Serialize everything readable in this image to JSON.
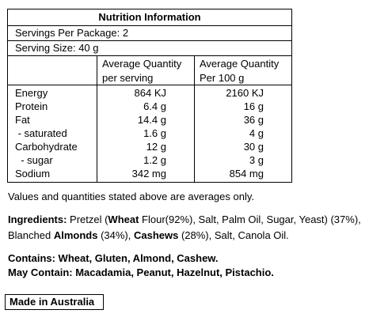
{
  "panel": {
    "title": "Nutrition Information",
    "servings": "Servings Per Package: 2",
    "serving_size": "Serving Size: 40 g",
    "col_serving": [
      "Average Quantity",
      "per serving"
    ],
    "col_100g": [
      "Average Quantity",
      "Per 100 g"
    ],
    "rows": [
      {
        "name": "Energy",
        "serving": "864 KJ",
        "per100": "2160 KJ"
      },
      {
        "name": "Protein",
        "serving": "6.4 g",
        "per100": "16 g"
      },
      {
        "name": "Fat",
        "serving": "14.4 g",
        "per100": "36 g"
      },
      {
        "name": " - saturated",
        "serving": "1.6 g",
        "per100": "4 g"
      },
      {
        "name": "Carbohydrate",
        "serving": "12 g",
        "per100": "30 g"
      },
      {
        "name": "  - sugar",
        "serving": "1.2 g",
        "per100": "3 g"
      },
      {
        "name": "Sodium",
        "serving": "342 mg",
        "per100": "854 mg"
      }
    ]
  },
  "note": "Values and quantities stated above are averages only.",
  "ingredients": [
    {
      "text": "Ingredients:",
      "bold": true
    },
    {
      "text": " Pretzel (",
      "bold": false
    },
    {
      "text": "Wheat",
      "bold": true
    },
    {
      "text": " Flour(92%), Salt, Palm Oil, Sugar, Yeast) (37%), Blanched ",
      "bold": false
    },
    {
      "text": "Almonds",
      "bold": true
    },
    {
      "text": " (34%), ",
      "bold": false
    },
    {
      "text": "Cashews",
      "bold": true
    },
    {
      "text": " (28%), Salt, Canola Oil.",
      "bold": false
    }
  ],
  "contains": "Contains: Wheat, Gluten, Almond, Cashew.",
  "may_contain": "May Contain: Macadamia, Peanut, Hazelnut, Pistachio.",
  "origin": "Made in Australia"
}
